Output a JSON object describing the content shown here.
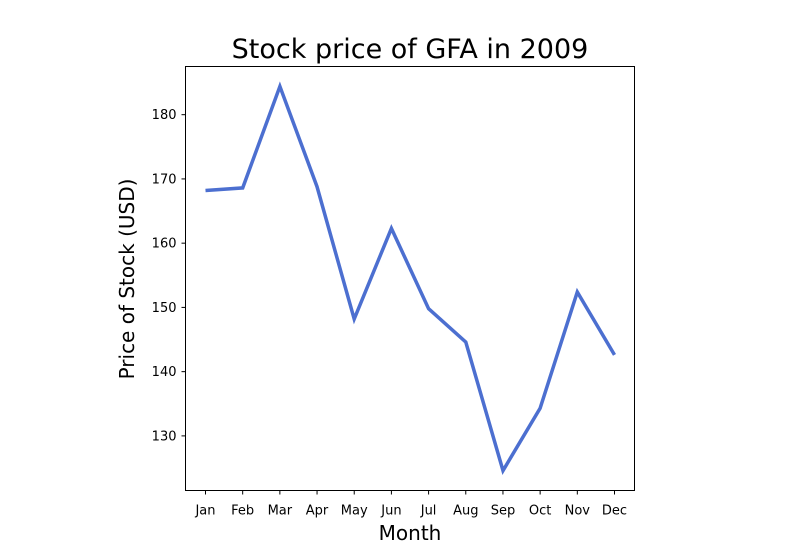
{
  "chart_data": {
    "type": "line",
    "title": "Stock price of GFA in 2009",
    "xlabel": "Month",
    "ylabel": "Price of Stock (USD)",
    "categories": [
      "Jan",
      "Feb",
      "Mar",
      "Apr",
      "May",
      "Jun",
      "Jul",
      "Aug",
      "Sep",
      "Oct",
      "Nov",
      "Dec"
    ],
    "series": [
      {
        "values": [
          168.2,
          168.6,
          184.4,
          168.8,
          148.2,
          162.3,
          149.8,
          144.6,
          124.6,
          134.3,
          152.4,
          142.6
        ]
      }
    ],
    "yticks": [
      130,
      140,
      150,
      160,
      170,
      180
    ],
    "ylim": [
      121.5,
      187.5
    ],
    "grid": false,
    "line_color": "#4c6fd0"
  }
}
